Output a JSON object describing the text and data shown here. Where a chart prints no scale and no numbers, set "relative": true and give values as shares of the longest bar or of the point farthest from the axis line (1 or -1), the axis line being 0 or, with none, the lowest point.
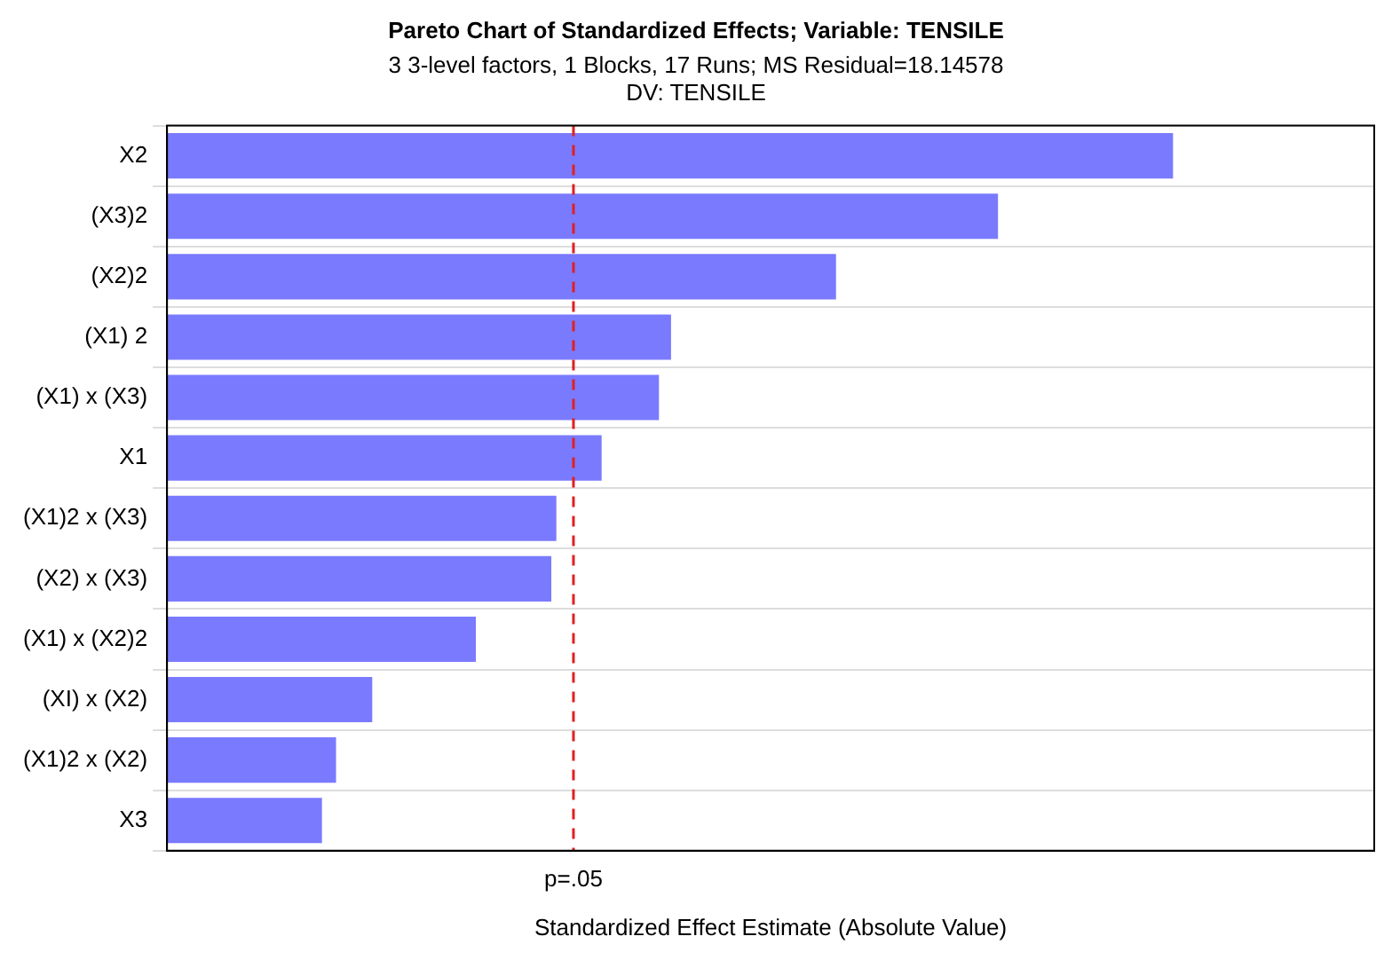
{
  "chart_data": {
    "type": "bar",
    "orientation": "horizontal",
    "relative": true,
    "title": "Pareto Chart of Standardized Effects; Variable: TENSILE",
    "subtitle": "3 3-level factors, 1 Blocks, 17 Runs; MS Residual=18.14578",
    "annotations": [
      "DV: TENSILE"
    ],
    "xlabel": "Standardized Effect Estimate (Absolute Value)",
    "categories": [
      "X2",
      "(X3)2",
      "(X2)2",
      "(X1) 2",
      "(X1) x (X3)",
      "X1",
      "(X1)2 x (X3)",
      "(X2) x (X3)",
      "(X1) x (X2)2",
      "(XI) x (X2)",
      "(X1)2 x (X2)",
      "X3"
    ],
    "values": [
      1,
      0.826,
      0.665,
      0.501,
      0.489,
      0.432,
      0.387,
      0.382,
      0.307,
      0.204,
      0.168,
      0.154
    ],
    "color": "#7a7aff",
    "ref_lines": [
      {
        "axis": "x",
        "value": 0.404,
        "label": "p=.05",
        "color": "#e02020",
        "line_style": "dashed"
      }
    ],
    "grid": "y",
    "legend": false
  }
}
